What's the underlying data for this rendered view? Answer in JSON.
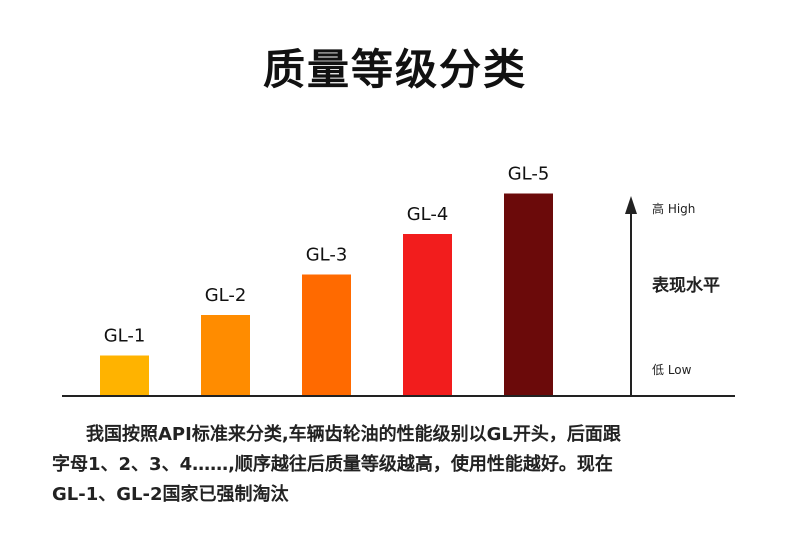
{
  "title": "质量等级分类",
  "chart_data": {
    "type": "bar",
    "categories": [
      "GL-1",
      "GL-2",
      "GL-3",
      "GL-4",
      "GL-5"
    ],
    "values": [
      1,
      2,
      3,
      4,
      5
    ],
    "colors": [
      "#FFB300",
      "#FF8C00",
      "#FF6A00",
      "#F21D1D",
      "#6B0A0A"
    ],
    "ylim": [
      0,
      5
    ],
    "axis_label": "表现水平",
    "axis_high": "高 High",
    "axis_low": "低 Low",
    "grid": false
  },
  "description": {
    "line1": "我国按照API标准来分类,车辆齿轮油的性能级别以GL开头，后面跟",
    "line2": "字母1、2、3、4……,顺序越往后质量等级越高，使用性能越好。现在",
    "line3": "GL-1、GL-2国家已强制淘汰"
  }
}
